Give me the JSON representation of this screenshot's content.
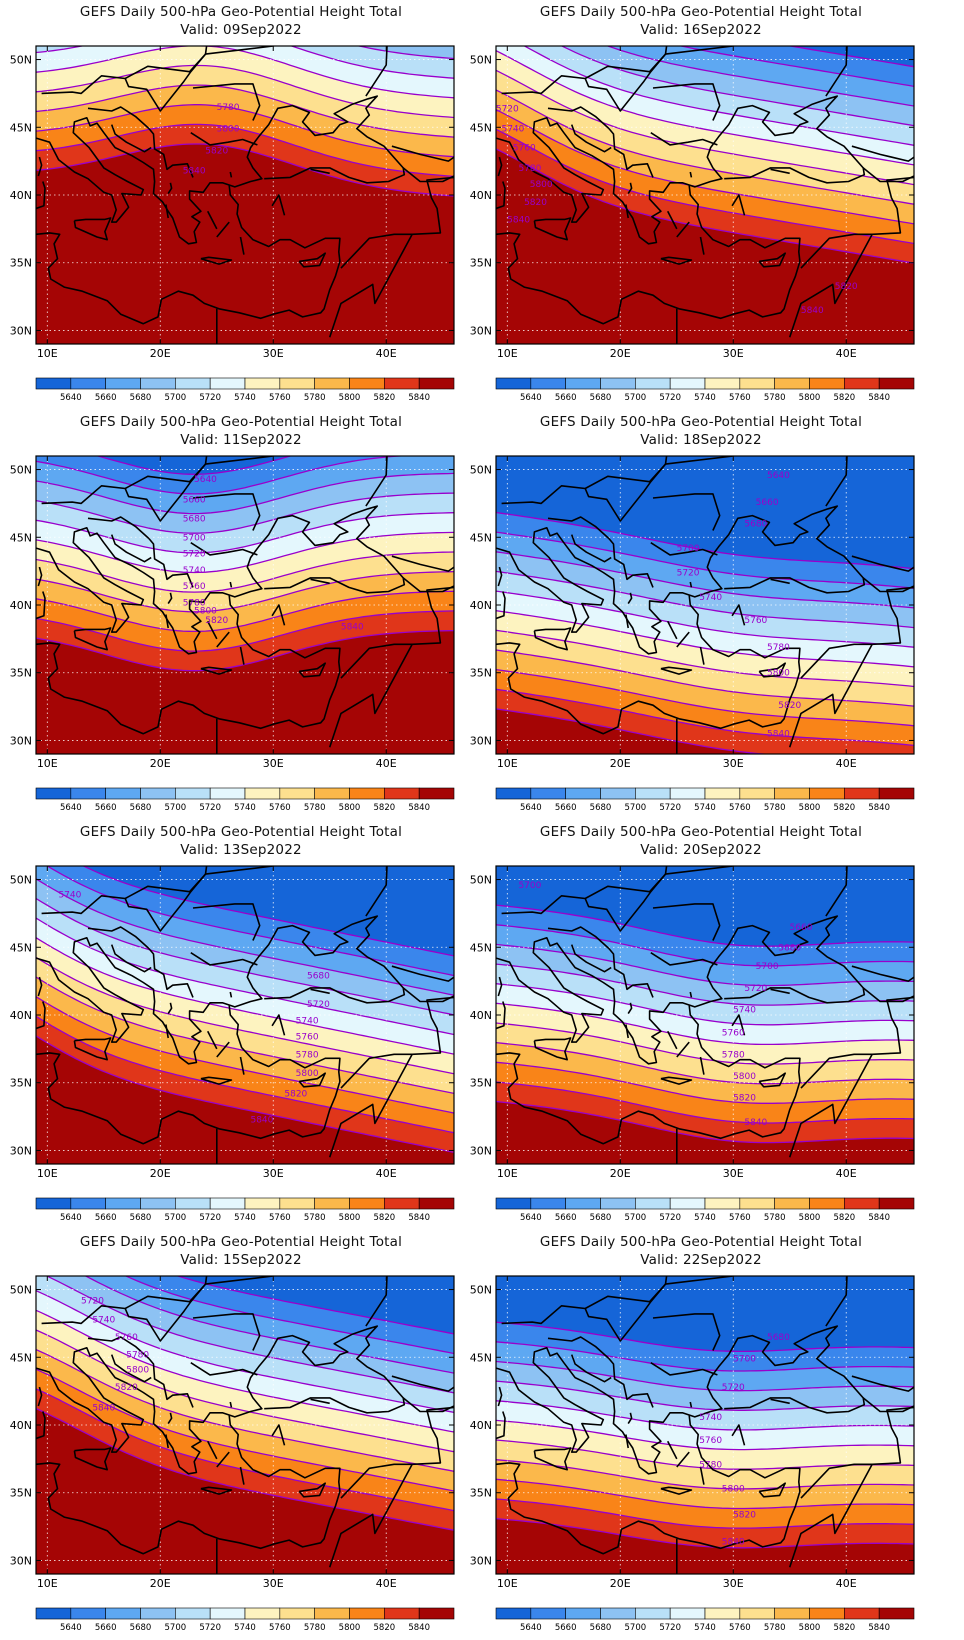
{
  "figure": {
    "common_title": "GEFS Daily 500-hPa Geo-Potential Height Total",
    "valid_prefix": "Valid:",
    "lon_ticks": [
      10,
      20,
      30,
      40
    ],
    "lon_labels": [
      "10E",
      "20E",
      "30E",
      "40E"
    ],
    "lat_ticks": [
      50,
      45,
      40,
      35,
      30
    ],
    "lat_labels": [
      "50N",
      "45N",
      "40N",
      "35N",
      "30N"
    ],
    "lon_range": [
      9,
      46
    ],
    "lat_range": [
      29,
      51
    ],
    "contour_color": "#9900cc",
    "colorbar": {
      "labels": [
        "5640",
        "5660",
        "5680",
        "5700",
        "5720",
        "5740",
        "5760",
        "5780",
        "5800",
        "5820",
        "5840"
      ],
      "colors": [
        "#1565d8",
        "#3a86ec",
        "#5ea8f2",
        "#8dc2f3",
        "#b9e0f8",
        "#e4f7fd",
        "#fdf3c0",
        "#fde08f",
        "#fbb84b",
        "#f98418",
        "#e0361a",
        "#a50505"
      ]
    }
  },
  "chart_data": [
    {
      "type": "contour-map",
      "valid": "09Sep2022",
      "ridge_lon": 24,
      "ridge_amp": 3.0,
      "lon_tilt": -0.04,
      "base_5780_lat": 45.7,
      "contour_labels": [
        {
          "text": "5780",
          "lon": 26,
          "lat": 46.5
        },
        {
          "text": "5800",
          "lon": 26,
          "lat": 44.9
        },
        {
          "text": "5820",
          "lon": 25,
          "lat": 43.3
        },
        {
          "text": "5840",
          "lon": 23,
          "lat": 41.8
        }
      ]
    },
    {
      "type": "contour-map",
      "valid": "16Sep2022",
      "ridge_lon": 4,
      "ridge_amp": 4.0,
      "lon_tilt": -0.14,
      "base_5780_lat": 44.5,
      "contour_labels": [
        {
          "text": "5720",
          "lon": 10,
          "lat": 46.4
        },
        {
          "text": "5740",
          "lon": 10.5,
          "lat": 44.9
        },
        {
          "text": "5760",
          "lon": 11.5,
          "lat": 43.5
        },
        {
          "text": "5780",
          "lon": 12,
          "lat": 42.0
        },
        {
          "text": "5800",
          "lon": 13,
          "lat": 40.8
        },
        {
          "text": "5820",
          "lon": 12.5,
          "lat": 39.5
        },
        {
          "text": "5840",
          "lon": 11,
          "lat": 38.2
        },
        {
          "text": "5820",
          "lon": 40,
          "lat": 33.3
        },
        {
          "text": "5840",
          "lon": 37,
          "lat": 31.5
        }
      ]
    },
    {
      "type": "contour-map",
      "valid": "11Sep2022",
      "ridge_lon": 23,
      "ridge_amp": -3.0,
      "lon_tilt": 0.0,
      "base_5780_lat": 42.5,
      "contour_labels": [
        {
          "text": "5640",
          "lon": 24,
          "lat": 49.3
        },
        {
          "text": "5660",
          "lon": 23,
          "lat": 47.8
        },
        {
          "text": "5680",
          "lon": 23,
          "lat": 46.4
        },
        {
          "text": "5700",
          "lon": 23,
          "lat": 45.0
        },
        {
          "text": "5720",
          "lon": 23,
          "lat": 43.8
        },
        {
          "text": "5740",
          "lon": 23,
          "lat": 42.6
        },
        {
          "text": "5760",
          "lon": 23,
          "lat": 41.4
        },
        {
          "text": "5780",
          "lon": 23,
          "lat": 40.2
        },
        {
          "text": "5800",
          "lon": 24,
          "lat": 39.6
        },
        {
          "text": "5820",
          "lon": 25,
          "lat": 38.9
        },
        {
          "text": "5840",
          "lon": 37,
          "lat": 38.4
        }
      ]
    },
    {
      "type": "contour-map",
      "valid": "18Sep2022",
      "ridge_lon": 30,
      "ridge_amp": -0.8,
      "lon_tilt": -0.11,
      "base_5780_lat": 36.7,
      "contour_labels": [
        {
          "text": "5640",
          "lon": 34,
          "lat": 49.6
        },
        {
          "text": "5660",
          "lon": 33,
          "lat": 47.6
        },
        {
          "text": "5680",
          "lon": 32,
          "lat": 46.0
        },
        {
          "text": "5700",
          "lon": 26,
          "lat": 44.2
        },
        {
          "text": "5720",
          "lon": 26,
          "lat": 42.4
        },
        {
          "text": "5740",
          "lon": 28,
          "lat": 40.6
        },
        {
          "text": "5760",
          "lon": 32,
          "lat": 38.9
        },
        {
          "text": "5780",
          "lon": 34,
          "lat": 36.9
        },
        {
          "text": "5800",
          "lon": 34,
          "lat": 35.0
        },
        {
          "text": "5820",
          "lon": 35,
          "lat": 32.6
        },
        {
          "text": "5840",
          "lon": 34,
          "lat": 30.5
        }
      ]
    },
    {
      "type": "contour-map",
      "valid": "13Sep2022",
      "ridge_lon": 0,
      "ridge_amp": 4.5,
      "lon_tilt": -0.17,
      "base_5780_lat": 40.5,
      "contour_labels": [
        {
          "text": "5740",
          "lon": 12,
          "lat": 48.9
        },
        {
          "text": "5680",
          "lon": 34,
          "lat": 42.9
        },
        {
          "text": "5720",
          "lon": 34,
          "lat": 40.8
        },
        {
          "text": "5740",
          "lon": 33,
          "lat": 39.6
        },
        {
          "text": "5760",
          "lon": 33,
          "lat": 38.4
        },
        {
          "text": "5780",
          "lon": 33,
          "lat": 37.1
        },
        {
          "text": "5800",
          "lon": 33,
          "lat": 35.7
        },
        {
          "text": "5820",
          "lon": 32,
          "lat": 34.2
        },
        {
          "text": "5840",
          "lon": 29,
          "lat": 32.3
        }
      ]
    },
    {
      "type": "contour-map",
      "valid": "20Sep2022",
      "ridge_lon": 30,
      "ridge_amp": -1.5,
      "lon_tilt": -0.07,
      "base_5780_lat": 38.0,
      "contour_labels": [
        {
          "text": "5700",
          "lon": 12,
          "lat": 49.6
        },
        {
          "text": "5660",
          "lon": 36,
          "lat": 46.5
        },
        {
          "text": "5680",
          "lon": 35,
          "lat": 45.0
        },
        {
          "text": "5700",
          "lon": 33,
          "lat": 43.6
        },
        {
          "text": "5720",
          "lon": 32,
          "lat": 42.0
        },
        {
          "text": "5740",
          "lon": 31,
          "lat": 40.4
        },
        {
          "text": "5760",
          "lon": 30,
          "lat": 38.7
        },
        {
          "text": "5780",
          "lon": 30,
          "lat": 37.1
        },
        {
          "text": "5800",
          "lon": 31,
          "lat": 35.5
        },
        {
          "text": "5820",
          "lon": 31,
          "lat": 33.9
        },
        {
          "text": "5840",
          "lon": 32,
          "lat": 32.1
        }
      ]
    },
    {
      "type": "contour-map",
      "valid": "15Sep2022",
      "ridge_lon": 5,
      "ridge_amp": 3.5,
      "lon_tilt": -0.16,
      "base_5780_lat": 42.5,
      "contour_labels": [
        {
          "text": "5720",
          "lon": 14,
          "lat": 49.2
        },
        {
          "text": "5740",
          "lon": 15,
          "lat": 47.8
        },
        {
          "text": "5760",
          "lon": 17,
          "lat": 46.5
        },
        {
          "text": "5780",
          "lon": 18,
          "lat": 45.2
        },
        {
          "text": "5800",
          "lon": 18,
          "lat": 44.1
        },
        {
          "text": "5820",
          "lon": 17,
          "lat": 42.8
        },
        {
          "text": "5840",
          "lon": 15,
          "lat": 41.3
        }
      ]
    },
    {
      "type": "contour-map",
      "valid": "22Sep2022",
      "ridge_lon": 28,
      "ridge_amp": -1.2,
      "lon_tilt": -0.05,
      "base_5780_lat": 37.5,
      "contour_labels": [
        {
          "text": "5680",
          "lon": 34,
          "lat": 46.5
        },
        {
          "text": "5700",
          "lon": 31,
          "lat": 44.9
        },
        {
          "text": "5720",
          "lon": 30,
          "lat": 42.8
        },
        {
          "text": "5740",
          "lon": 28,
          "lat": 40.6
        },
        {
          "text": "5760",
          "lon": 28,
          "lat": 38.9
        },
        {
          "text": "5780",
          "lon": 28,
          "lat": 37.1
        },
        {
          "text": "5800",
          "lon": 30,
          "lat": 35.3
        },
        {
          "text": "5820",
          "lon": 31,
          "lat": 33.4
        },
        {
          "text": "5840",
          "lon": 30,
          "lat": 31.4
        }
      ]
    }
  ]
}
